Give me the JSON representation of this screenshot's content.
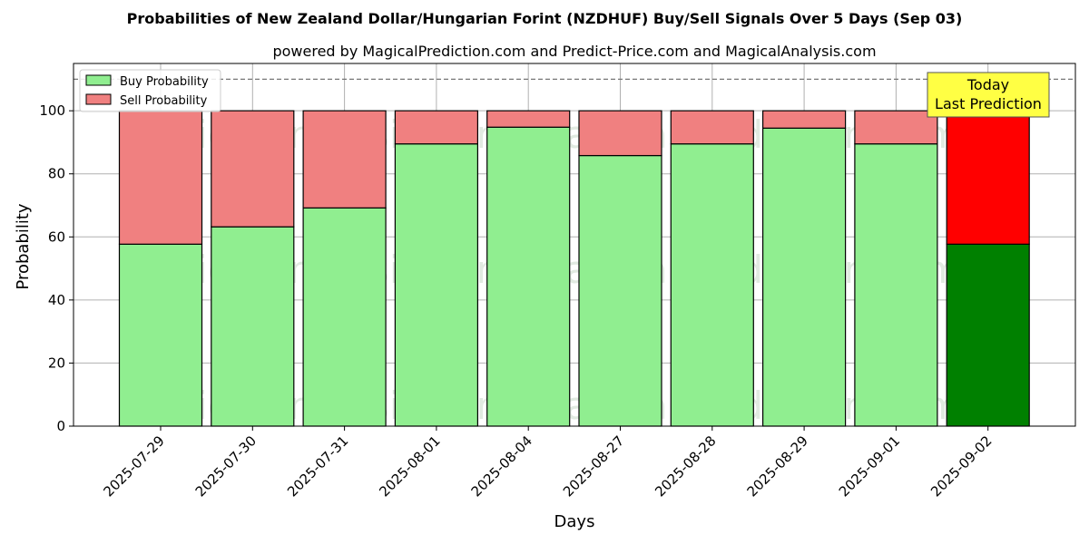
{
  "chart_data": {
    "type": "bar",
    "stacked": true,
    "title": "Probabilities of New Zealand Dollar/Hungarian Forint (NZDHUF) Buy/Sell Signals Over 5 Days (Sep 03)",
    "subtitle": "powered by MagicalPrediction.com and Predict-Price.com and MagicalAnalysis.com",
    "xlabel": "Days",
    "ylabel": "Probability",
    "ylim": [
      0,
      115
    ],
    "yticks": [
      0,
      20,
      40,
      60,
      80,
      100
    ],
    "grid": true,
    "legend_position": "top-left",
    "reference_line": 110,
    "categories": [
      "2025-07-29",
      "2025-07-30",
      "2025-07-31",
      "2025-08-01",
      "2025-08-04",
      "2025-08-27",
      "2025-08-28",
      "2025-08-29",
      "2025-09-01",
      "2025-09-02"
    ],
    "series": [
      {
        "name": "Buy Probability",
        "color": "#90ee90",
        "highlight_color": "#008000",
        "values": [
          57.7,
          63.2,
          69.2,
          89.5,
          94.8,
          85.8,
          89.5,
          94.5,
          89.5,
          57.7
        ]
      },
      {
        "name": "Sell Probability",
        "color": "#f08080",
        "highlight_color": "#ff0000",
        "values": [
          42.3,
          36.8,
          30.8,
          10.5,
          5.2,
          14.2,
          10.5,
          5.5,
          10.5,
          42.3
        ]
      }
    ],
    "highlight_index": 9,
    "annotation": {
      "line1": "Today",
      "line2": "Last Prediction",
      "color": "#ffff44"
    },
    "watermarks": [
      "MagicalAnalysis.com",
      "MagicalPrediction.com"
    ]
  }
}
